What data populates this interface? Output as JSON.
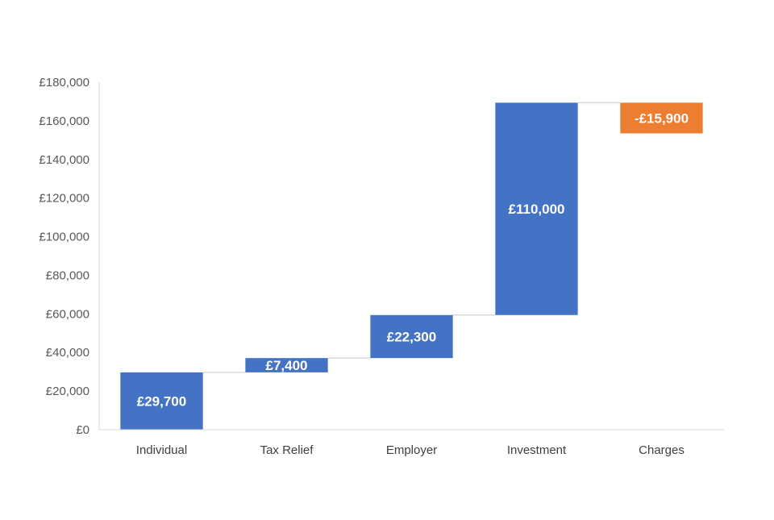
{
  "chart_data": {
    "type": "bar",
    "subtype": "waterfall",
    "categories": [
      "Individual",
      "Tax Relief",
      "Employer",
      "Investment",
      "Charges"
    ],
    "values": [
      29700,
      7400,
      22300,
      110000,
      -15900
    ],
    "value_labels": [
      "£29,700",
      "£7,400",
      "£22,300",
      "£110,000",
      "-£15,900"
    ],
    "ylim": [
      0,
      180000
    ],
    "y_ticks": [
      0,
      20000,
      40000,
      60000,
      80000,
      100000,
      120000,
      140000,
      160000,
      180000
    ],
    "y_tick_labels": [
      "£0",
      "£20,000",
      "£40,000",
      "£60,000",
      "£80,000",
      "£100,000",
      "£120,000",
      "£140,000",
      "£160,000",
      "£180,000"
    ],
    "title": "",
    "xlabel": "",
    "ylabel": "",
    "grid": false,
    "legend": "none",
    "colors": {
      "increase": "#4472C4",
      "decrease": "#ED7D31",
      "axis": "#D9D9D9",
      "connector": "#D9D9D9"
    }
  }
}
